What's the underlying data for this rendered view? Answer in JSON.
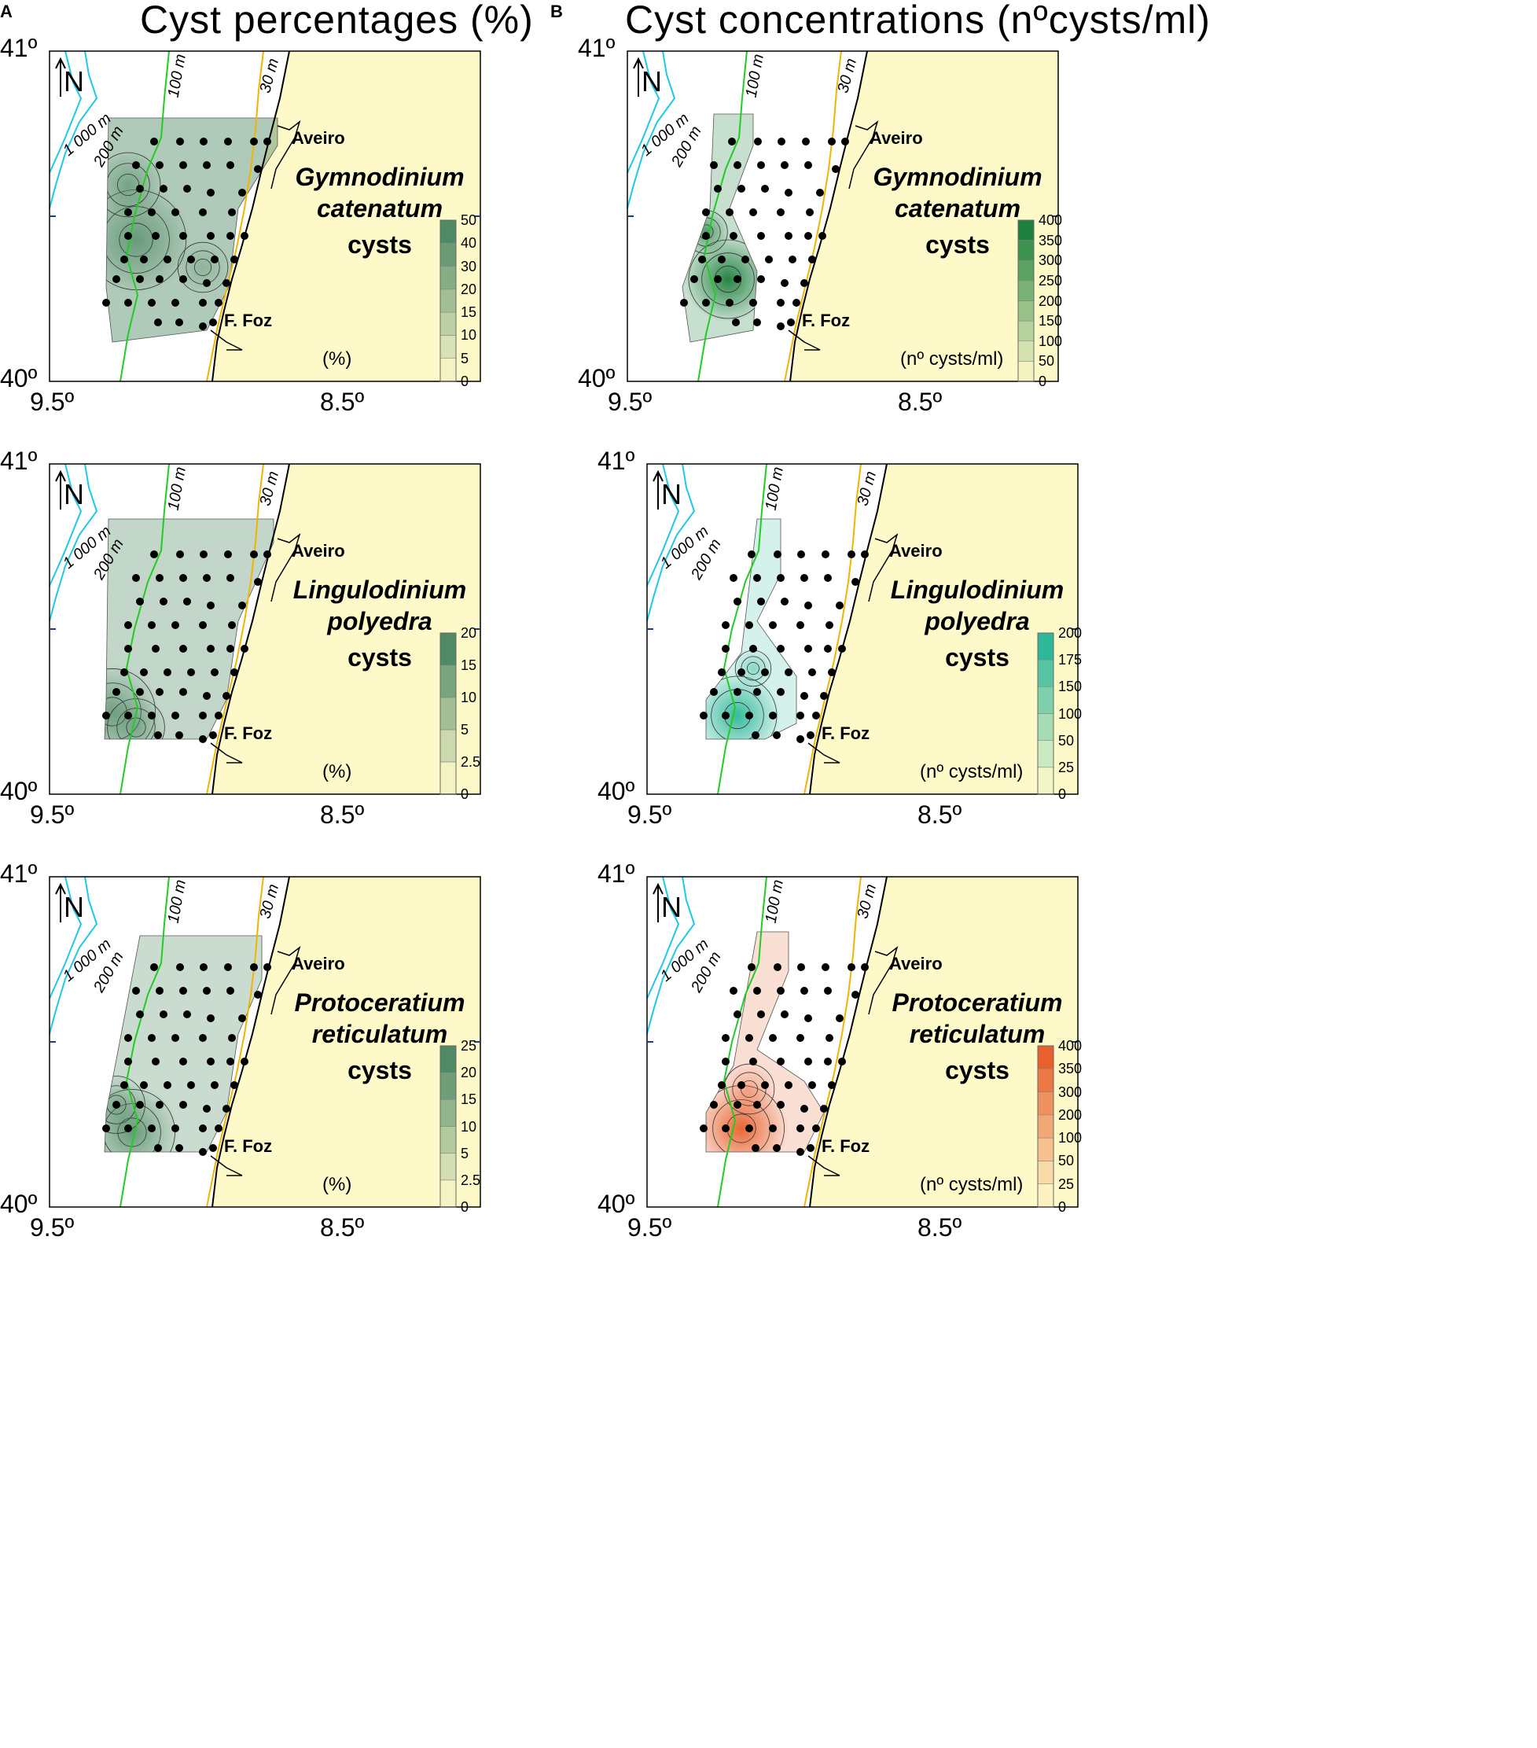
{
  "columns": [
    {
      "letter": "A",
      "title": "Cyst percentages (%)"
    },
    {
      "letter": "B",
      "title": "Cyst concentrations (nºcysts/ml)"
    }
  ],
  "axes": {
    "lat_top": "41º",
    "lat_bottom": "40º",
    "lon_left": "9.5º",
    "lon_right": "8.5º"
  },
  "map_labels": {
    "north": "N",
    "aveiro": "Aveiro",
    "ffoz": "F. Foz",
    "d1000": "1 000 m",
    "d200": "200 m",
    "d100": "100 m",
    "d30": "30 m"
  },
  "colors": {
    "land": "#fdf9c9",
    "isobath_deep": "#1fc8e6",
    "isobath_100": "#22cc22",
    "isobath_30": "#f1b400",
    "green": "#1e7f3e",
    "grey_green": "#4f8a64",
    "teal": "#2fb79a",
    "blue": "#3f7fbf",
    "orange": "#e8602c"
  },
  "panels": [
    {
      "id": "A1",
      "species_italic": [
        "Gymnodinium",
        "catenatum"
      ],
      "species_suffix": "cysts",
      "unit": "(%)",
      "scale": [
        "0",
        "5",
        "10",
        "15",
        "20",
        "30",
        "40",
        "50"
      ],
      "palette": "grey_green"
    },
    {
      "id": "B1",
      "species_italic": [
        "Gymnodinium",
        "catenatum"
      ],
      "species_suffix": "cysts",
      "unit": "(nº cysts/ml)",
      "scale": [
        "0",
        "50",
        "100",
        "150",
        "200",
        "250",
        "300",
        "350",
        "400"
      ],
      "palette": "green"
    },
    {
      "id": "A2",
      "species_italic": [
        "Lingulodinium",
        "polyedra"
      ],
      "species_suffix": "cysts",
      "unit": "(%)",
      "scale": [
        "0",
        "2.5",
        "5",
        "10",
        "15",
        "20"
      ],
      "palette": "grey_green"
    },
    {
      "id": "B2",
      "species_italic": [
        "Lingulodinium",
        "polyedra"
      ],
      "species_suffix": "cysts",
      "unit": "(nº cysts/ml)",
      "scale": [
        "0",
        "25",
        "50",
        "100",
        "150",
        "175",
        "200"
      ],
      "palette": "teal"
    },
    {
      "id": "A3",
      "species_italic": [
        "Protoceratium",
        "reticulatum"
      ],
      "species_suffix": "cysts",
      "unit": "(%)",
      "scale": [
        "0",
        "2.5",
        "5",
        "10",
        "15",
        "20",
        "25"
      ],
      "palette": "grey_green"
    },
    {
      "id": "B3",
      "species_italic": [
        "Protoceratium",
        "reticulatum"
      ],
      "species_suffix": "cysts",
      "unit": "(nº cysts/ml)",
      "scale": [
        "0",
        "25",
        "50",
        "100",
        "200",
        "300",
        "350",
        "400"
      ],
      "palette": "orange"
    }
  ]
}
